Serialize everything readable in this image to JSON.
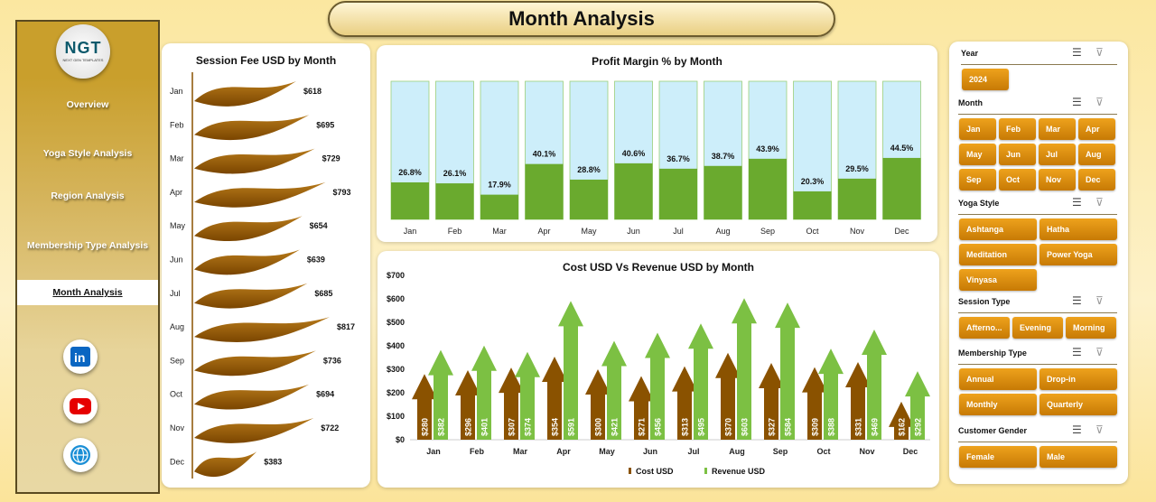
{
  "header": {
    "title": "Month Analysis"
  },
  "sidebar": {
    "logo": "NGT",
    "logo_sub": "NEXT GEN TEMPLATES",
    "items": [
      {
        "label": "Overview"
      },
      {
        "label": "Yoga Style Analysis"
      },
      {
        "label": "Region Analysis"
      },
      {
        "label": "Membership Type Analysis"
      },
      {
        "label": "Month Analysis",
        "active": true
      }
    ],
    "social": [
      "linkedin-icon",
      "youtube-icon",
      "globe-icon"
    ]
  },
  "chart_data": [
    {
      "type": "bar",
      "orientation": "horizontal",
      "title": "Session Fee USD by Month",
      "categories": [
        "Jan",
        "Feb",
        "Mar",
        "Apr",
        "May",
        "Jun",
        "Jul",
        "Aug",
        "Sep",
        "Oct",
        "Nov",
        "Dec"
      ],
      "values": [
        618,
        695,
        729,
        793,
        654,
        639,
        685,
        817,
        736,
        694,
        722,
        383
      ],
      "labels": [
        "$618",
        "$695",
        "$729",
        "$793",
        "$654",
        "$639",
        "$685",
        "$817",
        "$736",
        "$694",
        "$722",
        "$383"
      ],
      "color": "#9a5c00"
    },
    {
      "type": "bar",
      "title": "Profit Margin % by Month",
      "categories": [
        "Jan",
        "Feb",
        "Mar",
        "Apr",
        "May",
        "Jun",
        "Jul",
        "Aug",
        "Sep",
        "Oct",
        "Nov",
        "Dec"
      ],
      "values": [
        26.8,
        26.1,
        17.9,
        40.1,
        28.8,
        40.6,
        36.7,
        38.7,
        43.9,
        20.3,
        29.5,
        44.5
      ],
      "labels": [
        "26.8%",
        "26.1%",
        "17.9%",
        "40.1%",
        "28.8%",
        "40.6%",
        "36.7%",
        "38.7%",
        "43.9%",
        "20.3%",
        "29.5%",
        "44.5%"
      ],
      "ylim": [
        0,
        100
      ],
      "colors": {
        "fill": "#6aaa2e",
        "background": "#cdeefa"
      }
    },
    {
      "type": "bar",
      "title": "Cost USD Vs  Revenue USD by Month",
      "categories": [
        "Jan",
        "Feb",
        "Mar",
        "Apr",
        "May",
        "Jun",
        "Jul",
        "Aug",
        "Sep",
        "Oct",
        "Nov",
        "Dec"
      ],
      "ylim": [
        0,
        700
      ],
      "yticks": [
        "$0",
        "$100",
        "$200",
        "$300",
        "$400",
        "$500",
        "$600",
        "$700"
      ],
      "legend": "bottom",
      "series": [
        {
          "name": "Cost USD",
          "color": "#8a5200",
          "values": [
            280,
            296,
            307,
            354,
            300,
            271,
            313,
            370,
            327,
            309,
            331,
            162
          ],
          "labels": [
            "$280",
            "$296",
            "$307",
            "$354",
            "$300",
            "$271",
            "$313",
            "$370",
            "$327",
            "$309",
            "$331",
            "$162"
          ]
        },
        {
          "name": "Revenue USD",
          "color": "#7cc043",
          "values": [
            382,
            401,
            374,
            591,
            421,
            456,
            495,
            603,
            584,
            388,
            469,
            292
          ],
          "labels": [
            "$382",
            "$401",
            "$374",
            "$591",
            "$421",
            "$456",
            "$495",
            "$603",
            "$584",
            "$388",
            "$469",
            "$292"
          ]
        }
      ]
    }
  ],
  "slicers": [
    {
      "title": "Year",
      "items": [
        "2024"
      ]
    },
    {
      "title": "Month",
      "items": [
        "Jan",
        "Feb",
        "Mar",
        "Apr",
        "May",
        "Jun",
        "Jul",
        "Aug",
        "Sep",
        "Oct",
        "Nov",
        "Dec"
      ]
    },
    {
      "title": "Yoga Style",
      "items": [
        "Ashtanga",
        "Hatha",
        "Meditation",
        "Power Yoga",
        "Vinyasa"
      ]
    },
    {
      "title": "Session Type",
      "items": [
        "Afterno...",
        "Evening",
        "Morning"
      ]
    },
    {
      "title": "Membership Type",
      "items": [
        "Annual",
        "Drop-in",
        "Monthly",
        "Quarterly"
      ]
    },
    {
      "title": "Customer Gender",
      "items": [
        "Female",
        "Male"
      ]
    }
  ]
}
